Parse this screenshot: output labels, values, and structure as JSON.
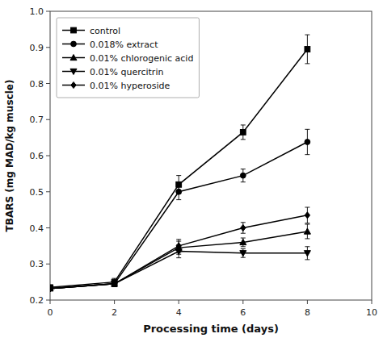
{
  "chart_data": {
    "type": "line",
    "x": [
      0,
      2,
      4,
      6,
      8
    ],
    "series": [
      {
        "name": "control",
        "values": [
          0.235,
          0.25,
          0.52,
          0.665,
          0.895
        ],
        "errors": [
          0.005,
          0.01,
          0.025,
          0.02,
          0.04
        ],
        "marker": "square",
        "color": "#000000"
      },
      {
        "name": "0.018% extract",
        "values": [
          0.232,
          0.245,
          0.5,
          0.545,
          0.638
        ],
        "errors": [
          0.005,
          0.008,
          0.022,
          0.018,
          0.035
        ],
        "marker": "circle",
        "color": "#000000"
      },
      {
        "name": "0.01% chlorogenic acid",
        "values": [
          0.232,
          0.245,
          0.345,
          0.36,
          0.39
        ],
        "errors": [
          0.005,
          0.008,
          0.018,
          0.012,
          0.02
        ],
        "marker": "triangle-up",
        "color": "#000000"
      },
      {
        "name": "0.01% quercitrin",
        "values": [
          0.232,
          0.245,
          0.335,
          0.33,
          0.33
        ],
        "errors": [
          0.005,
          0.008,
          0.018,
          0.012,
          0.018
        ],
        "marker": "triangle-down",
        "color": "#000000"
      },
      {
        "name": "0.01% hyperoside",
        "values": [
          0.232,
          0.245,
          0.35,
          0.4,
          0.435
        ],
        "errors": [
          0.005,
          0.008,
          0.018,
          0.015,
          0.022
        ],
        "marker": "diamond",
        "color": "#000000"
      }
    ],
    "x_label": "Processing time (days)",
    "y_label": "TBARS (mg MAD/kg muscle)",
    "xlim": [
      0,
      10
    ],
    "ylim": [
      0.2,
      1.0
    ],
    "xticks": [
      0,
      2,
      4,
      6,
      8,
      10
    ],
    "yticks": [
      0.2,
      0.3,
      0.4,
      0.5,
      0.6,
      0.7,
      0.8,
      0.9,
      {
        "value": 1.0,
        "label": "1.0"
      }
    ],
    "legend": "upper left",
    "grid": false
  }
}
